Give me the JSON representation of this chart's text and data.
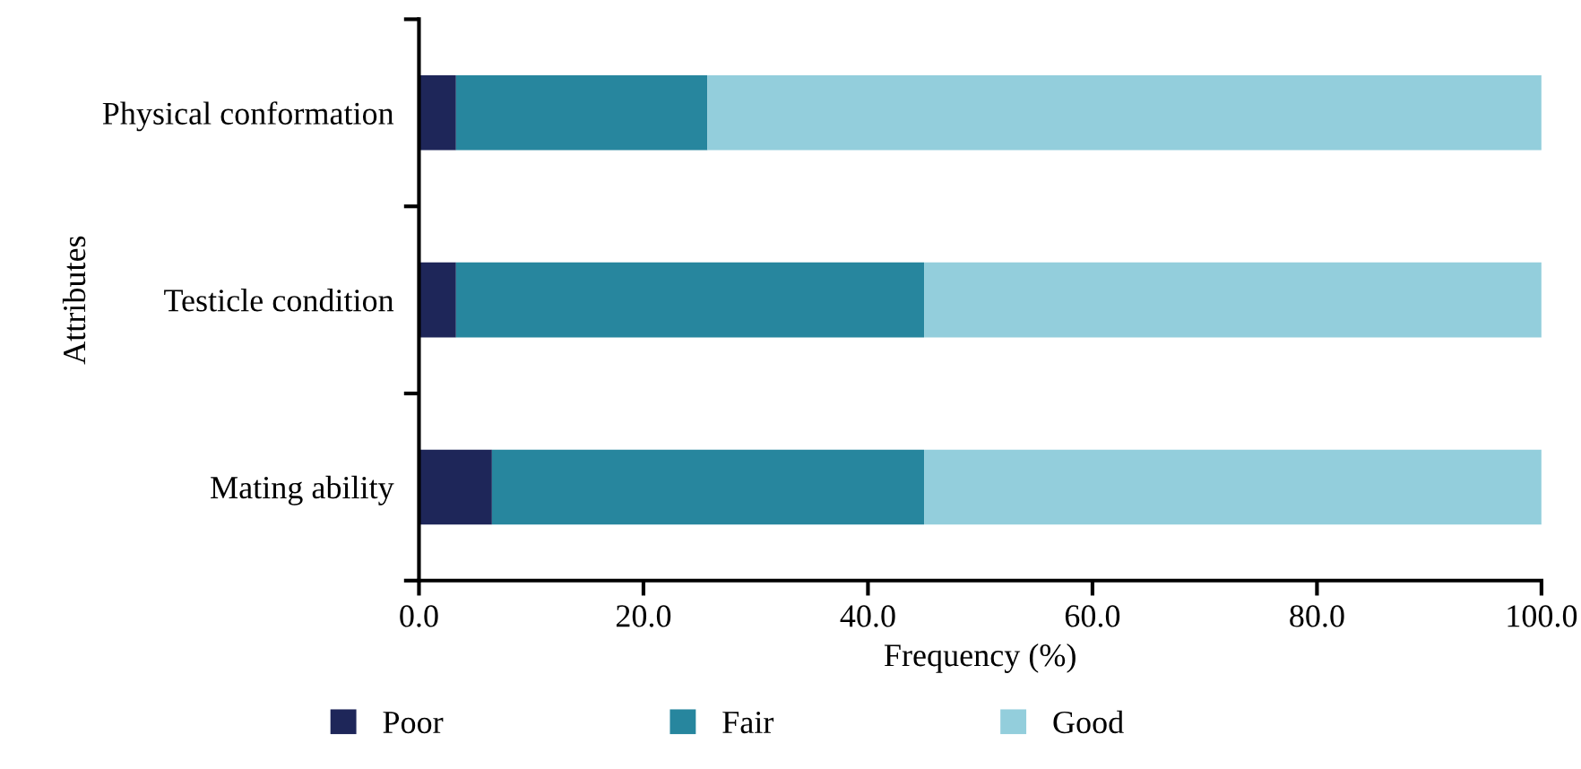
{
  "chart_data": {
    "type": "bar",
    "orientation": "horizontal",
    "stacked": true,
    "xlabel": "Frequency (%)",
    "ylabel": "Attributes",
    "categories": [
      "Physical conformation",
      "Testicle condition",
      "Mating ability"
    ],
    "series": [
      {
        "name": "Poor",
        "color": "#1e2659",
        "values": [
          3.3,
          3.3,
          6.5
        ]
      },
      {
        "name": "Fair",
        "color": "#27869e",
        "values": [
          22.4,
          41.7,
          38.5
        ]
      },
      {
        "name": "Good",
        "color": "#93cedc",
        "values": [
          74.3,
          55.0,
          55.0
        ]
      }
    ],
    "xlim": [
      0,
      100
    ],
    "xticks": [
      {
        "value": 0,
        "label": "0.0"
      },
      {
        "value": 20,
        "label": "20.0"
      },
      {
        "value": 40,
        "label": "40.0"
      },
      {
        "value": 60,
        "label": "60.0"
      },
      {
        "value": 80,
        "label": "80.0"
      },
      {
        "value": 100,
        "label": "100.0"
      }
    ],
    "legend": "bottom",
    "grid": false
  }
}
